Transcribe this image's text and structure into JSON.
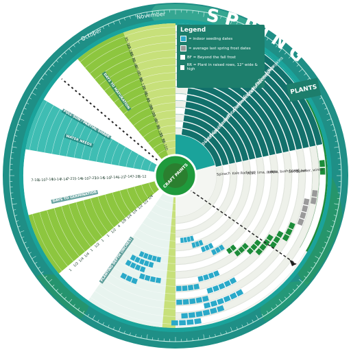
{
  "wheel": {
    "title": "SPRING",
    "brand": "CRAFT PAINTS",
    "month_label": "November",
    "month_label_2": "October",
    "colors": {
      "outer_ring": "#1f8f86",
      "teal_dark": "#12706b",
      "teal": "#1aa39b",
      "teal_light": "#3fbdb3",
      "green": "#1c8c3a",
      "green_light": "#8dc63f",
      "lime": "#c7e07a",
      "cyan": "#2aa9c9",
      "grey": "#9a9a9a",
      "center": "#1f9a3c",
      "paper": "#f4f6f2"
    }
  },
  "legend": {
    "title": "Legend",
    "items": [
      "= indoor seeding dates",
      "= average last spring frost dates",
      "BF = Beyond the fall frost",
      "RR = Plant in raised rows, 12\" wide & high"
    ]
  },
  "plants_header": "PLANTS",
  "plants": [
    "Beets",
    "Cabbage",
    "Broccoli",
    "Cauliflower",
    "Carrots",
    "Lettuce",
    "Potatoes",
    "Onions",
    "Green Beans",
    "Sweet Corn",
    "Cucumbers",
    "Squash / Zucchini",
    "Peppers",
    "Tomatoes",
    "Okra",
    "Pumpkins"
  ],
  "plant_notes": [
    "Spinach",
    "Kale",
    "Radishes",
    "Peas, lima, pole",
    "Leeks",
    "Pole, bush beans",
    "Sweet, hot",
    "Summer, winter"
  ],
  "side_labels": [
    "DAYS TO MATURATION",
    "DAYS TO GERMINATION",
    "PLANTING DEPTH (INCHES)",
    "FULL SUN / PARTIAL SHADE",
    "WATER NEEDS"
  ],
  "maturation_values": [
    "50-100",
    "55-70",
    "90-100",
    "50-75",
    "65-90",
    "60-100",
    "55-100",
    "60-80",
    "70-85",
    "80-110",
    "75-90",
    "60-80",
    "45-60",
    "60-70",
    "90-100",
    "85-115"
  ],
  "germination_values": [
    "5-12",
    "7-28",
    "7-14",
    "6-21",
    "7-14",
    "5-10",
    "10-14",
    "7-21",
    "4-10",
    "5-14",
    "7-21",
    "7-14",
    "10-14",
    "7-14",
    "6-10",
    "7-10"
  ],
  "depth_values": [
    "1/4",
    "1/2",
    "1/2",
    "1/4",
    "1/4",
    "1/8",
    "4",
    "1/2",
    "1",
    "1",
    "1/2",
    "1",
    "1/4",
    "1/4",
    "1/2",
    "1"
  ]
}
